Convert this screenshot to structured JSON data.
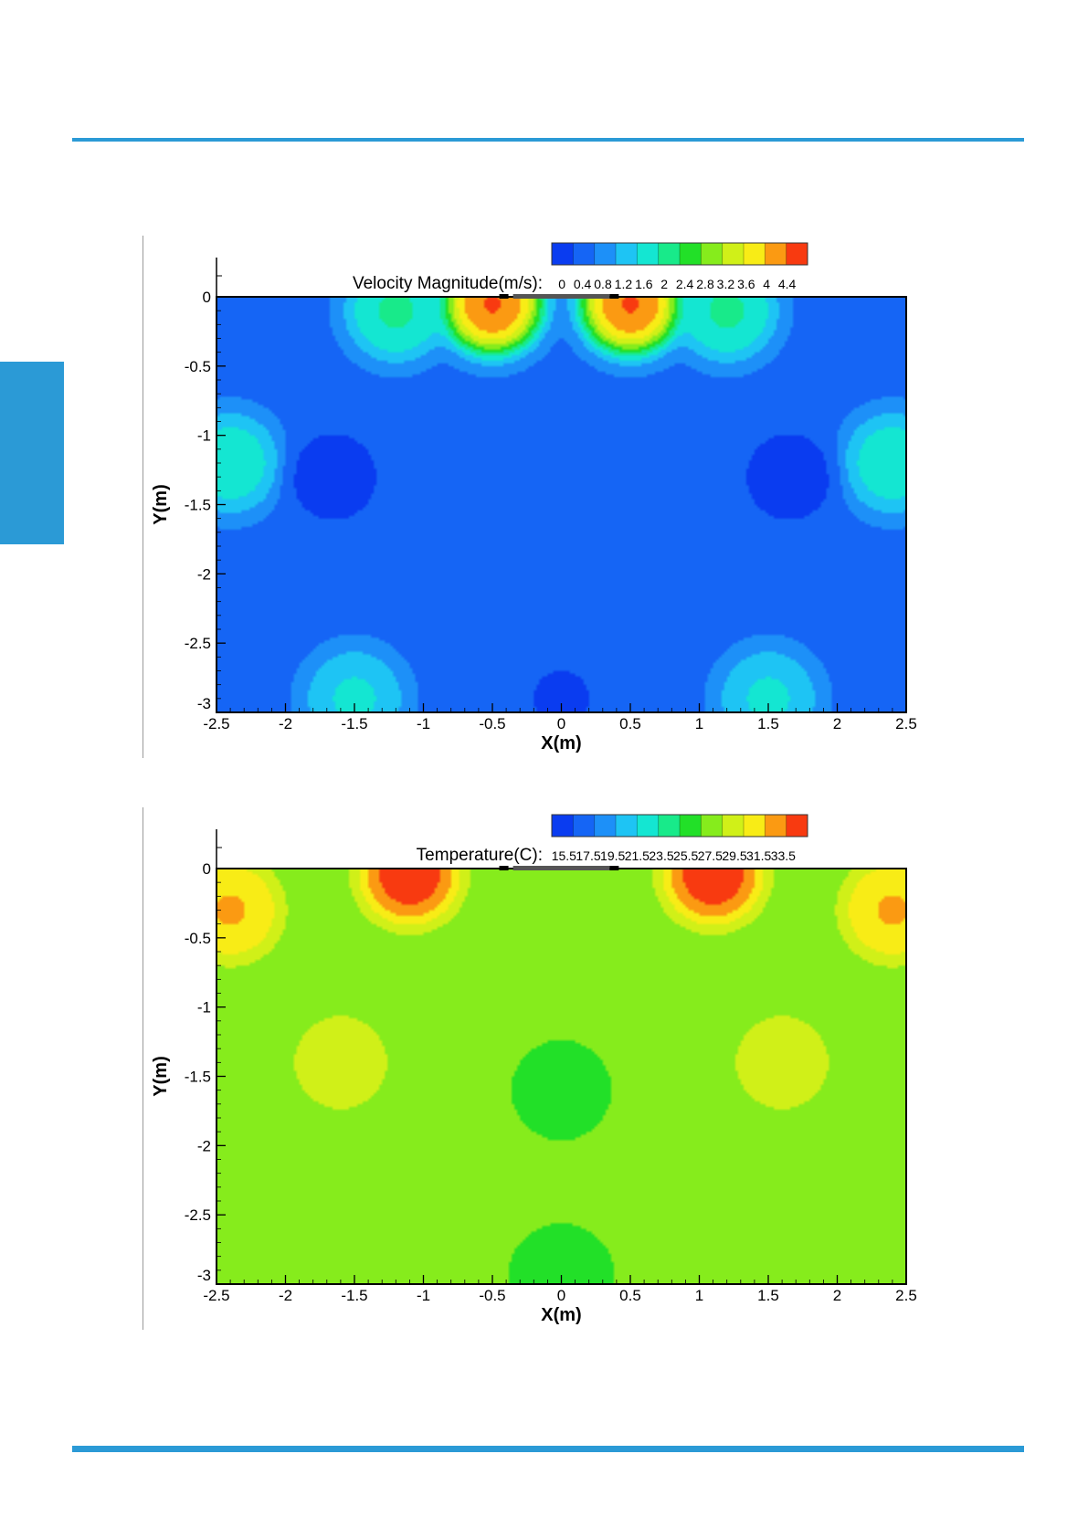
{
  "page": {
    "accent_color": "#2b9ad6"
  },
  "chart_data": [
    {
      "type": "heatmap",
      "colorbar_label": "Velocity Magnitude(m/s):",
      "colorbar_ticks": [
        "0",
        "0.4",
        "0.8",
        "1.2",
        "1.6",
        "2",
        "2.4",
        "2.8",
        "3.2",
        "3.6",
        "4",
        "4.4"
      ],
      "colormap": [
        "#0a3cf0",
        "#1565f5",
        "#1d90f8",
        "#1ec4f4",
        "#14e6d2",
        "#18ea8a",
        "#22e028",
        "#86ec1c",
        "#d0f018",
        "#f8ec16",
        "#fb9a12",
        "#f83a10"
      ],
      "xlabel": "X(m)",
      "ylabel": "Y(m)",
      "xlim": [
        -2.5,
        2.5
      ],
      "ylim": [
        -3,
        0
      ],
      "x_ticks": [
        "-2.5",
        "-2",
        "-1.5",
        "-1",
        "-0.5",
        "0",
        "0.5",
        "1",
        "1.5",
        "2",
        "2.5"
      ],
      "y_ticks": [
        "0",
        "-0.5",
        "-1",
        "-1.5",
        "-2",
        "-2.5",
        "-3"
      ],
      "value_range": [
        0,
        4.4
      ],
      "field": {
        "background_value": 0.65,
        "features": [
          {
            "x": -0.5,
            "y": -0.05,
            "value": 4.4
          },
          {
            "x": 0.5,
            "y": -0.05,
            "value": 4.4
          },
          {
            "x": -1.2,
            "y": -0.1,
            "value": 2.0
          },
          {
            "x": 1.2,
            "y": -0.1,
            "value": 2.0
          },
          {
            "x": -2.4,
            "y": -1.2,
            "value": 1.8
          },
          {
            "x": 2.4,
            "y": -1.2,
            "value": 1.8
          },
          {
            "x": -1.5,
            "y": -2.9,
            "value": 1.6
          },
          {
            "x": 1.5,
            "y": -2.9,
            "value": 1.6
          },
          {
            "x": -1.65,
            "y": -1.3,
            "value": 0.15
          },
          {
            "x": 1.65,
            "y": -1.3,
            "value": 0.15
          },
          {
            "x": 0.0,
            "y": -2.9,
            "value": 0.3
          }
        ]
      }
    },
    {
      "type": "heatmap",
      "colorbar_label": "Temperature(C):",
      "colorbar_ticks": [
        "15.5",
        "17.5",
        "19.5",
        "21.5",
        "23.5",
        "25.5",
        "27.5",
        "29.5",
        "31.5",
        "33.5"
      ],
      "colormap": [
        "#0a3cf0",
        "#1565f5",
        "#1d90f8",
        "#1ec4f4",
        "#14e6d2",
        "#18ea8a",
        "#22e028",
        "#86ec1c",
        "#d0f018",
        "#f8ec16",
        "#fb9a12",
        "#f83a10"
      ],
      "xlabel": "X(m)",
      "ylabel": "Y(m)",
      "xlim": [
        -2.5,
        2.5
      ],
      "ylim": [
        -3,
        0
      ],
      "x_ticks": [
        "-2.5",
        "-2",
        "-1.5",
        "-1",
        "-0.5",
        "0",
        "0.5",
        "1",
        "1.5",
        "2",
        "2.5"
      ],
      "y_ticks": [
        "0",
        "-0.5",
        "-1",
        "-1.5",
        "-2",
        "-2.5",
        "-3"
      ],
      "value_range": [
        15.5,
        33.5
      ],
      "field": {
        "background_value": 26.6,
        "features": [
          {
            "x": -1.1,
            "y": -0.04,
            "value": 33.5
          },
          {
            "x": 1.1,
            "y": -0.04,
            "value": 33.5
          },
          {
            "x": -2.4,
            "y": -0.3,
            "value": 31.0
          },
          {
            "x": 2.4,
            "y": -0.3,
            "value": 31.0
          },
          {
            "x": -1.6,
            "y": -1.4,
            "value": 28.5
          },
          {
            "x": 1.6,
            "y": -1.4,
            "value": 28.5
          },
          {
            "x": 0.0,
            "y": -1.6,
            "value": 25.0
          },
          {
            "x": 0.0,
            "y": -2.95,
            "value": 24.5
          }
        ]
      }
    }
  ]
}
